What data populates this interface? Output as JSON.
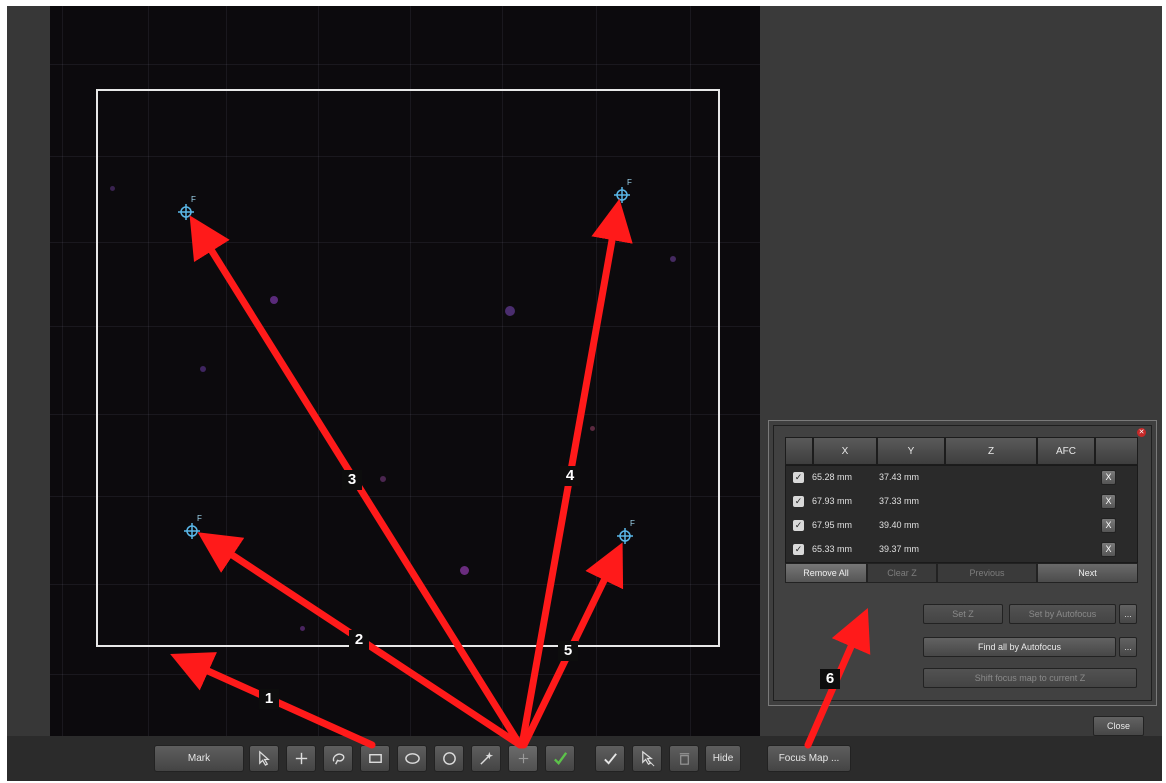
{
  "toolbar": {
    "mark_label": "Mark",
    "hide_label": "Hide",
    "focus_map_label": "Focus Map ..."
  },
  "focus_table": {
    "headers": [
      "X",
      "Y",
      "Z",
      "AFC"
    ],
    "rows": [
      {
        "x": "65.28 mm",
        "y": "37.43 mm",
        "delete": "X"
      },
      {
        "x": "67.93 mm",
        "y": "37.33 mm",
        "delete": "X"
      },
      {
        "x": "67.95 mm",
        "y": "39.40 mm",
        "delete": "X"
      },
      {
        "x": "65.33 mm",
        "y": "39.37 mm",
        "delete": "X"
      }
    ],
    "nav": {
      "remove_all": "Remove All",
      "clear_z": "Clear Z",
      "previous": "Previous",
      "next": "Next"
    }
  },
  "actions": {
    "set_z": "Set Z",
    "set_by_autofocus": "Set by Autofocus",
    "dots": "...",
    "find_all": "Find all by Autofocus",
    "shift_focus": "Shift focus map to current Z",
    "close": "Close"
  },
  "focus_point_label": "F",
  "annotations": [
    "1",
    "2",
    "3",
    "4",
    "5",
    "6"
  ],
  "colors": {
    "arrow": "#ff1a1a",
    "focus_point": "#5ab7e8",
    "scan_rect": "#e8e8e8"
  }
}
